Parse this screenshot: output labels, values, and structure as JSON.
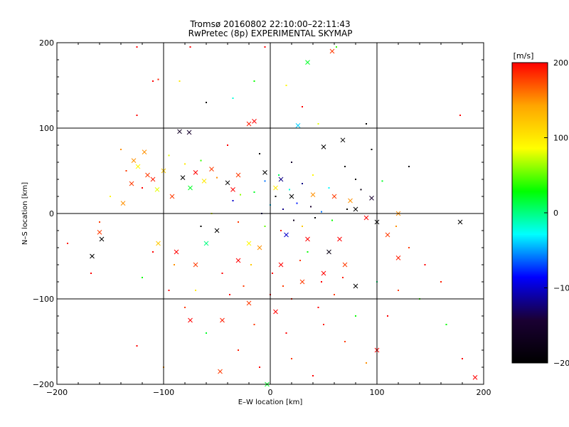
{
  "chart_data": {
    "type": "scatter",
    "title": "Tromsø 20160802 22:10:00–22:11:43",
    "subtitle": "RwPretec (8p) EXPERIMENTAL SKYMAP",
    "xlabel": "E–W location [km]",
    "ylabel": "N–S location [km]",
    "xlim": [
      -200,
      200
    ],
    "ylim": [
      -200,
      200
    ],
    "x_ticks": [
      "−200",
      "−100",
      "0",
      "100",
      "200"
    ],
    "y_ticks": [
      "−200",
      "−100",
      "0",
      "100",
      "200"
    ],
    "grid": true,
    "colorbar": {
      "label": "[m/s]",
      "range": [
        -200,
        200
      ],
      "ticks": [
        "200",
        "100",
        "0",
        "−100",
        "−200"
      ],
      "colors": [
        "#ff0000",
        "#ffa500",
        "#ffff00",
        "#00ff00",
        "#00ffff",
        "#0000ff",
        "#1a0033",
        "#000000"
      ]
    },
    "series": [
      {
        "marker": "x",
        "points": [
          [
            -160,
            -22,
            180
          ],
          [
            -167,
            -50,
            -200
          ],
          [
            -158,
            -30,
            -200
          ],
          [
            -138,
            12,
            150
          ],
          [
            -130,
            35,
            180
          ],
          [
            -128,
            62,
            150
          ],
          [
            -124,
            55,
            90
          ],
          [
            -118,
            72,
            150
          ],
          [
            -115,
            45,
            180
          ],
          [
            -110,
            40,
            190
          ],
          [
            -106,
            28,
            80
          ],
          [
            -100,
            50,
            120
          ],
          [
            -92,
            20,
            180
          ],
          [
            -85,
            96,
            -160
          ],
          [
            -76,
            95,
            -150
          ],
          [
            -82,
            42,
            -200
          ],
          [
            -75,
            30,
            20
          ],
          [
            -70,
            48,
            200
          ],
          [
            -62,
            38,
            100
          ],
          [
            -55,
            52,
            180
          ],
          [
            -40,
            36,
            -200
          ],
          [
            -35,
            28,
            200
          ],
          [
            -30,
            45,
            180
          ],
          [
            -20,
            105,
            190
          ],
          [
            -15,
            108,
            200
          ],
          [
            -5,
            48,
            -200
          ],
          [
            5,
            30,
            100
          ],
          [
            10,
            40,
            -120
          ],
          [
            20,
            20,
            -200
          ],
          [
            26,
            103,
            -40
          ],
          [
            35,
            177,
            20
          ],
          [
            40,
            22,
            150
          ],
          [
            50,
            78,
            -200
          ],
          [
            58,
            190,
            180
          ],
          [
            60,
            20,
            180
          ],
          [
            68,
            86,
            -200
          ],
          [
            75,
            15,
            150
          ],
          [
            80,
            5,
            -200
          ],
          [
            90,
            -5,
            200
          ],
          [
            95,
            18,
            -150
          ],
          [
            100,
            -10,
            -200
          ],
          [
            110,
            -25,
            180
          ],
          [
            120,
            0,
            150
          ],
          [
            178,
            -10,
            -200
          ],
          [
            -88,
            -45,
            200
          ],
          [
            -70,
            -60,
            180
          ],
          [
            -50,
            -20,
            -200
          ],
          [
            -30,
            -55,
            200
          ],
          [
            -10,
            -40,
            150
          ],
          [
            10,
            -60,
            200
          ],
          [
            30,
            -80,
            180
          ],
          [
            50,
            -70,
            200
          ],
          [
            70,
            -60,
            180
          ],
          [
            80,
            -85,
            -200
          ],
          [
            -20,
            -105,
            180
          ],
          [
            5,
            -115,
            200
          ],
          [
            -45,
            -125,
            190
          ],
          [
            -75,
            -125,
            200
          ],
          [
            -105,
            -35,
            120
          ],
          [
            -60,
            -35,
            0
          ],
          [
            -20,
            -35,
            90
          ],
          [
            15,
            -25,
            -100
          ],
          [
            35,
            -30,
            200
          ],
          [
            55,
            -45,
            -180
          ],
          [
            65,
            -30,
            200
          ],
          [
            100,
            -160,
            200
          ],
          [
            -47,
            -185,
            180
          ],
          [
            -3,
            -200,
            20
          ],
          [
            192,
            -192,
            200
          ],
          [
            120,
            -52,
            190
          ]
        ]
      },
      {
        "marker": "dot",
        "points": [
          [
            -190,
            -35,
            190
          ],
          [
            -168,
            -70,
            200
          ],
          [
            -125,
            195,
            200
          ],
          [
            -110,
            155,
            200
          ],
          [
            -105,
            157,
            190
          ],
          [
            -125,
            115,
            200
          ],
          [
            -85,
            155,
            100
          ],
          [
            -75,
            195,
            200
          ],
          [
            -60,
            130,
            -200
          ],
          [
            -35,
            135,
            -20
          ],
          [
            -15,
            155,
            30
          ],
          [
            -5,
            195,
            200
          ],
          [
            15,
            150,
            90
          ],
          [
            30,
            125,
            200
          ],
          [
            45,
            105,
            80
          ],
          [
            62,
            195,
            40
          ],
          [
            90,
            105,
            -200
          ],
          [
            95,
            75,
            -200
          ],
          [
            130,
            55,
            -180
          ],
          [
            178,
            115,
            200
          ],
          [
            -140,
            75,
            150
          ],
          [
            -135,
            50,
            180
          ],
          [
            -120,
            30,
            200
          ],
          [
            -95,
            68,
            80
          ],
          [
            -80,
            58,
            100
          ],
          [
            -65,
            62,
            40
          ],
          [
            -50,
            42,
            150
          ],
          [
            -15,
            25,
            20
          ],
          [
            0,
            10,
            -40
          ],
          [
            12,
            5,
            -120
          ],
          [
            25,
            12,
            -80
          ],
          [
            38,
            8,
            -150
          ],
          [
            48,
            2,
            -60
          ],
          [
            58,
            -8,
            30
          ],
          [
            72,
            5,
            -200
          ],
          [
            85,
            28,
            -180
          ],
          [
            105,
            38,
            20
          ],
          [
            118,
            -15,
            150
          ],
          [
            130,
            -40,
            180
          ],
          [
            145,
            -60,
            200
          ],
          [
            160,
            -80,
            190
          ],
          [
            -120,
            -75,
            30
          ],
          [
            -95,
            -90,
            200
          ],
          [
            -80,
            -110,
            180
          ],
          [
            -60,
            -140,
            20
          ],
          [
            -30,
            -160,
            190
          ],
          [
            -10,
            -180,
            200
          ],
          [
            20,
            -170,
            180
          ],
          [
            40,
            -190,
            200
          ],
          [
            70,
            -150,
            180
          ],
          [
            90,
            -175,
            150
          ],
          [
            110,
            -120,
            200
          ],
          [
            140,
            -100,
            40
          ],
          [
            165,
            -130,
            30
          ],
          [
            180,
            -170,
            200
          ],
          [
            -125,
            -155,
            200
          ],
          [
            -100,
            -180,
            150
          ],
          [
            -160,
            -10,
            180
          ],
          [
            -150,
            20,
            90
          ],
          [
            -40,
            80,
            200
          ],
          [
            -10,
            70,
            -200
          ],
          [
            20,
            60,
            -150
          ],
          [
            40,
            45,
            90
          ],
          [
            70,
            55,
            -200
          ],
          [
            80,
            40,
            -200
          ],
          [
            -55,
            0,
            80
          ],
          [
            -30,
            -10,
            180
          ],
          [
            -5,
            -15,
            50
          ],
          [
            10,
            -20,
            190
          ],
          [
            30,
            -15,
            120
          ],
          [
            -45,
            -70,
            200
          ],
          [
            -25,
            -85,
            180
          ],
          [
            0,
            -95,
            200
          ],
          [
            20,
            -100,
            190
          ],
          [
            45,
            -110,
            200
          ],
          [
            60,
            -95,
            180
          ],
          [
            -70,
            -90,
            100
          ],
          [
            -90,
            -60,
            150
          ],
          [
            -110,
            -45,
            200
          ],
          [
            -15,
            -130,
            180
          ],
          [
            15,
            -140,
            200
          ],
          [
            50,
            -130,
            190
          ],
          [
            80,
            -120,
            30
          ],
          [
            100,
            -80,
            0
          ],
          [
            120,
            -90,
            180
          ],
          [
            -65,
            -15,
            -200
          ],
          [
            -35,
            15,
            -100
          ],
          [
            5,
            20,
            -200
          ],
          [
            30,
            35,
            -120
          ],
          [
            55,
            30,
            -30
          ],
          [
            -5,
            38,
            -60
          ],
          [
            18,
            28,
            -20
          ],
          [
            8,
            45,
            10
          ],
          [
            -28,
            22,
            60
          ],
          [
            42,
            -5,
            -200
          ],
          [
            -8,
            0,
            -130
          ],
          [
            22,
            -8,
            -170
          ],
          [
            35,
            -45,
            30
          ],
          [
            -18,
            -60,
            120
          ],
          [
            2,
            -70,
            200
          ],
          [
            28,
            -55,
            180
          ],
          [
            48,
            -80,
            200
          ],
          [
            68,
            -75,
            190
          ],
          [
            -38,
            -95,
            200
          ],
          [
            12,
            -85,
            180
          ]
        ]
      }
    ]
  }
}
